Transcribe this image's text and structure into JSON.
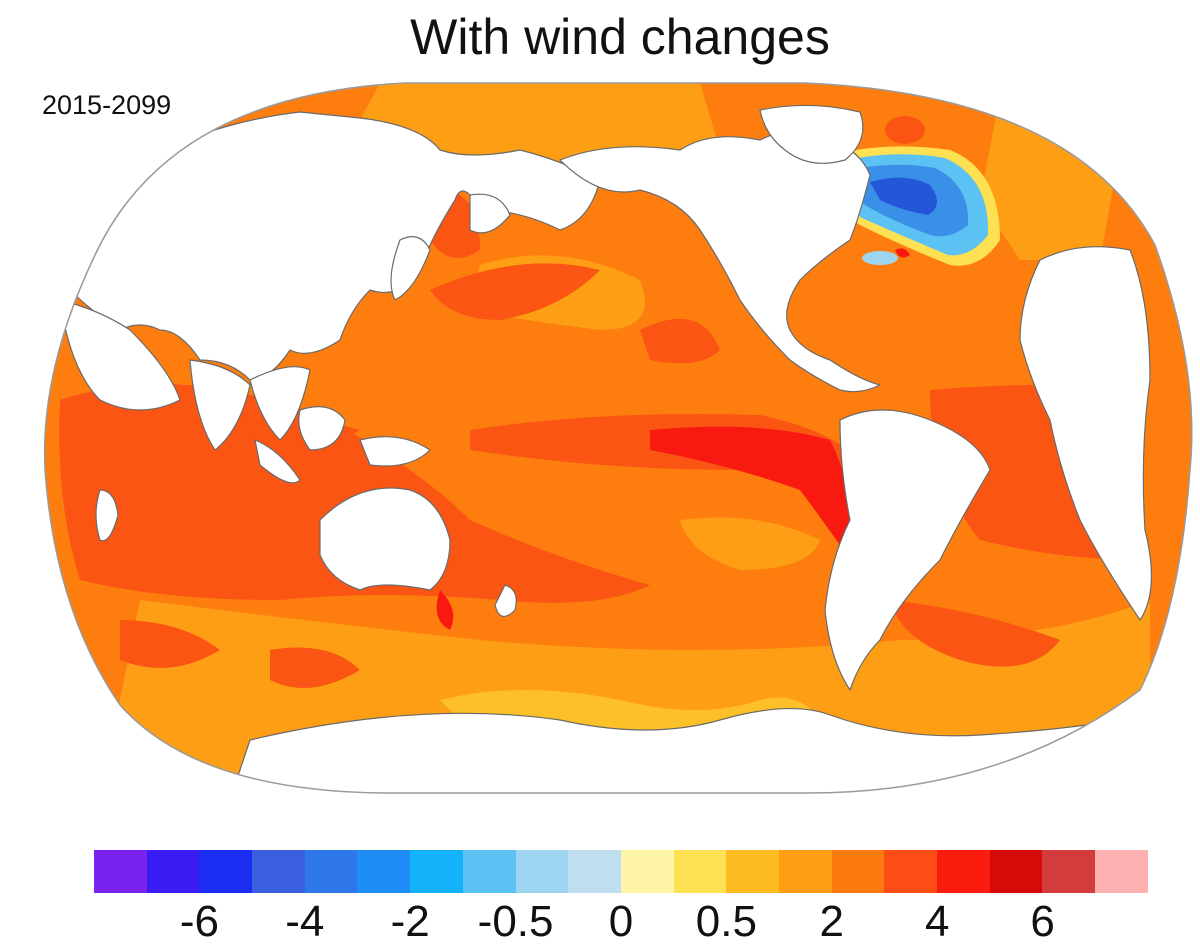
{
  "title": "With wind changes",
  "period_label": "2015-2099",
  "colorbar": {
    "colors": [
      "#7a22ee",
      "#3a1bf4",
      "#1c2ef2",
      "#3a5fdf",
      "#2f78ea",
      "#1e8df5",
      "#14b2f8",
      "#5cc1f3",
      "#9dd4ef",
      "#bfdff0",
      "#fff5a6",
      "#fde152",
      "#fdbb22",
      "#fd9e15",
      "#fd7a10",
      "#fb4d14",
      "#fb1c10",
      "#d70a0a",
      "#d23c3c",
      "#fdb1b1"
    ],
    "ticks": [
      "-6",
      "-4",
      "-2",
      "-0.5",
      "0",
      "0.5",
      "2",
      "4",
      "6"
    ]
  },
  "map": {
    "projection": "Robinson",
    "ocean_base_color": "#fd7e0f",
    "regions": [
      {
        "name": "arctic-warming-band",
        "value_class": "2"
      },
      {
        "name": "north-atlantic-cooling-patch",
        "value_class": "-2"
      },
      {
        "name": "eastern-tropical-pacific-warming",
        "value_class": "4"
      },
      {
        "name": "indian-ocean-warming",
        "value_class": "4"
      },
      {
        "name": "southern-ocean-moderate-warming",
        "value_class": "0.5"
      }
    ]
  }
}
